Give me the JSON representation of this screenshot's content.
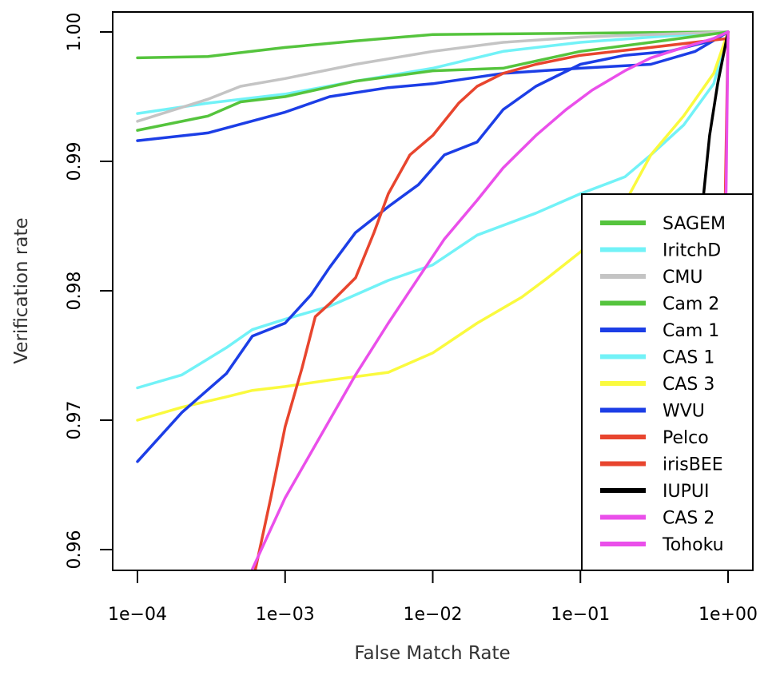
{
  "chart_data": {
    "type": "line",
    "title": "",
    "xlabel": "False Match Rate",
    "ylabel": "Verification rate",
    "x_scale": "log",
    "xlim": [
      0.0001,
      1
    ],
    "ylim": [
      0.96,
      1.0
    ],
    "x_ticks": [
      0.0001,
      0.001,
      0.01,
      0.1,
      1
    ],
    "x_tick_labels": [
      "1e−04",
      "1e−03",
      "1e−02",
      "1e−01",
      "1e+00"
    ],
    "y_ticks": [
      0.96,
      0.97,
      0.98,
      0.99,
      1.0
    ],
    "y_tick_labels": [
      "0.96",
      "0.97",
      "0.98",
      "0.99",
      "1.00"
    ],
    "grid": false,
    "legend_position": "bottom-right",
    "series": [
      {
        "name": "SAGEM",
        "color": "#55c43d",
        "points": [
          [
            0.0001,
            0.998
          ],
          [
            0.0003,
            0.9981
          ],
          [
            0.0005,
            0.9984
          ],
          [
            0.001,
            0.9988
          ],
          [
            0.003,
            0.9993
          ],
          [
            0.01,
            0.9998
          ],
          [
            0.03,
            0.99985
          ],
          [
            0.1,
            0.9999
          ],
          [
            0.3,
            0.99995
          ],
          [
            1,
            1.0
          ]
        ]
      },
      {
        "name": "IritchD",
        "color": "#72f2f7",
        "points": [
          [
            0.0001,
            0.9937
          ],
          [
            0.0003,
            0.9945
          ],
          [
            0.001,
            0.9952
          ],
          [
            0.003,
            0.9962
          ],
          [
            0.01,
            0.9972
          ],
          [
            0.03,
            0.9985
          ],
          [
            0.1,
            0.9992
          ],
          [
            0.3,
            0.9996
          ],
          [
            1,
            1.0
          ]
        ]
      },
      {
        "name": "CMU",
        "color": "#c4c4c4",
        "points": [
          [
            0.0001,
            0.9931
          ],
          [
            0.0003,
            0.9948
          ],
          [
            0.0005,
            0.9958
          ],
          [
            0.001,
            0.9964
          ],
          [
            0.003,
            0.9975
          ],
          [
            0.01,
            0.9985
          ],
          [
            0.03,
            0.9992
          ],
          [
            0.1,
            0.9996
          ],
          [
            0.3,
            0.9998
          ],
          [
            1,
            1.0
          ]
        ]
      },
      {
        "name": "Cam 2",
        "color": "#55c43d",
        "points": [
          [
            0.0001,
            0.9924
          ],
          [
            0.0003,
            0.9935
          ],
          [
            0.0005,
            0.9946
          ],
          [
            0.001,
            0.995
          ],
          [
            0.003,
            0.9962
          ],
          [
            0.01,
            0.997
          ],
          [
            0.03,
            0.9972
          ],
          [
            0.1,
            0.9985
          ],
          [
            0.3,
            0.9992
          ],
          [
            1,
            1.0
          ]
        ]
      },
      {
        "name": "Cam 1",
        "color": "#1c3ee6",
        "points": [
          [
            0.0001,
            0.9916
          ],
          [
            0.0003,
            0.9922
          ],
          [
            0.001,
            0.9938
          ],
          [
            0.002,
            0.995
          ],
          [
            0.005,
            0.9957
          ],
          [
            0.01,
            0.996
          ],
          [
            0.03,
            0.9968
          ],
          [
            0.1,
            0.9972
          ],
          [
            0.3,
            0.9975
          ],
          [
            0.6,
            0.9985
          ],
          [
            1,
            1.0
          ]
        ]
      },
      {
        "name": "CAS 1",
        "color": "#72f2f7",
        "points": [
          [
            0.0001,
            0.9725
          ],
          [
            0.0002,
            0.9735
          ],
          [
            0.0004,
            0.9756
          ],
          [
            0.0006,
            0.977
          ],
          [
            0.001,
            0.9778
          ],
          [
            0.002,
            0.9788
          ],
          [
            0.005,
            0.9808
          ],
          [
            0.01,
            0.982
          ],
          [
            0.02,
            0.9843
          ],
          [
            0.05,
            0.986
          ],
          [
            0.1,
            0.9875
          ],
          [
            0.2,
            0.9888
          ],
          [
            0.3,
            0.9905
          ],
          [
            0.5,
            0.9928
          ],
          [
            0.8,
            0.996
          ],
          [
            1,
            1.0
          ]
        ]
      },
      {
        "name": "CAS 3",
        "color": "#fafa3e",
        "points": [
          [
            0.0001,
            0.97
          ],
          [
            0.0002,
            0.971
          ],
          [
            0.0004,
            0.9718
          ],
          [
            0.0006,
            0.9723
          ],
          [
            0.001,
            0.9726
          ],
          [
            0.002,
            0.9731
          ],
          [
            0.005,
            0.9737
          ],
          [
            0.01,
            0.9752
          ],
          [
            0.02,
            0.9775
          ],
          [
            0.04,
            0.9795
          ],
          [
            0.06,
            0.981
          ],
          [
            0.1,
            0.983
          ],
          [
            0.2,
            0.9868
          ],
          [
            0.3,
            0.9905
          ],
          [
            0.5,
            0.9935
          ],
          [
            0.8,
            0.9968
          ],
          [
            1,
            1.0
          ]
        ]
      },
      {
        "name": "WVU",
        "color": "#1c3ee6",
        "points": [
          [
            0.0001,
            0.9668
          ],
          [
            0.0002,
            0.9706
          ],
          [
            0.0004,
            0.9736
          ],
          [
            0.0006,
            0.9765
          ],
          [
            0.001,
            0.9775
          ],
          [
            0.0015,
            0.9797
          ],
          [
            0.002,
            0.9818
          ],
          [
            0.003,
            0.9845
          ],
          [
            0.005,
            0.9865
          ],
          [
            0.008,
            0.9882
          ],
          [
            0.012,
            0.9905
          ],
          [
            0.02,
            0.9915
          ],
          [
            0.03,
            0.994
          ],
          [
            0.05,
            0.9958
          ],
          [
            0.1,
            0.9975
          ],
          [
            0.2,
            0.9982
          ],
          [
            0.4,
            0.9985
          ],
          [
            0.7,
            0.9992
          ],
          [
            1,
            1.0
          ]
        ]
      },
      {
        "name": "Pelco",
        "color": "#e8452e",
        "points": [
          [
            0.00063,
            0.9585
          ],
          [
            0.0008,
            0.964
          ],
          [
            0.001,
            0.9695
          ],
          [
            0.0013,
            0.974
          ],
          [
            0.0016,
            0.978
          ],
          [
            0.002,
            0.979
          ],
          [
            0.003,
            0.981
          ],
          [
            0.004,
            0.9845
          ],
          [
            0.005,
            0.9875
          ],
          [
            0.007,
            0.9905
          ],
          [
            0.01,
            0.992
          ],
          [
            0.015,
            0.9945
          ],
          [
            0.02,
            0.9958
          ],
          [
            0.03,
            0.9968
          ],
          [
            0.05,
            0.9975
          ],
          [
            0.1,
            0.9982
          ],
          [
            0.3,
            0.9988
          ],
          [
            1,
            0.9995
          ]
        ]
      },
      {
        "name": "irisBEE",
        "color": "#e8452e",
        "points": [
          [
            0.85,
            0.959
          ],
          [
            0.9,
            0.97
          ],
          [
            0.95,
            0.985
          ],
          [
            1,
            1.0
          ]
        ]
      },
      {
        "name": "IUPUI",
        "color": "#000000",
        "points": [
          [
            0.55,
            0.9705
          ],
          [
            0.6,
            0.978
          ],
          [
            0.65,
            0.985
          ],
          [
            0.75,
            0.992
          ],
          [
            0.85,
            0.996
          ],
          [
            1,
            1.0
          ]
        ]
      },
      {
        "name": "CAS 2",
        "color": "#ea4fea",
        "points": [
          [
            0.0006,
            0.9585
          ],
          [
            0.001,
            0.964
          ],
          [
            0.002,
            0.97
          ],
          [
            0.003,
            0.9735
          ],
          [
            0.005,
            0.9775
          ],
          [
            0.008,
            0.981
          ],
          [
            0.012,
            0.984
          ],
          [
            0.02,
            0.987
          ],
          [
            0.03,
            0.9895
          ],
          [
            0.05,
            0.992
          ],
          [
            0.08,
            0.994
          ],
          [
            0.12,
            0.9955
          ],
          [
            0.2,
            0.997
          ],
          [
            0.3,
            0.998
          ],
          [
            0.5,
            0.9988
          ],
          [
            0.8,
            0.9995
          ],
          [
            1,
            1.0
          ]
        ]
      },
      {
        "name": "Tohoku",
        "color": "#ea4fea",
        "points": [
          [
            0.85,
            0.959
          ],
          [
            0.92,
            0.975
          ],
          [
            0.97,
            0.988
          ],
          [
            1,
            1.0
          ]
        ]
      }
    ]
  }
}
